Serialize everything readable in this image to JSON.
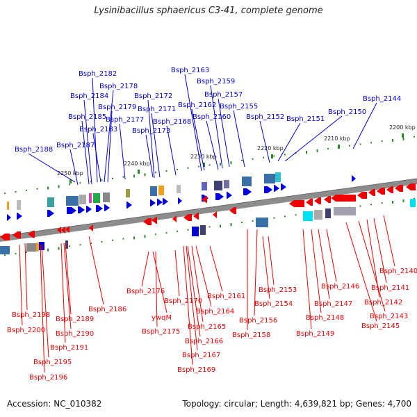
{
  "title": "Lysinibacillus sphaericus C3-41, complete genome",
  "footer": {
    "accession": "Accession: NC_010382",
    "summary": "Topology: circular; Length: 4,639,821 bp; Genes: 4,700"
  },
  "colors": {
    "forward": "#0000dd",
    "reverse": "#ee0000"
  },
  "ticks": [
    "2250 kbp",
    "2240 kbp",
    "2230 kbp",
    "2220 kbp",
    "2210 kbp",
    "2200 kbp"
  ],
  "forward_genes": [
    "Bsph_2182",
    "Bsph_2178",
    "Bsph_2184",
    "Bsph_2179",
    "Bsph_2172",
    "Bsph_2185",
    "Bsph_2177",
    "Bsph_2171",
    "Bsph_2183",
    "Bsph_2173",
    "Bsph_2168",
    "Bsph_2187",
    "Bsph_2188",
    "Bsph_2163",
    "Bsph_2159",
    "Bsph_2157",
    "Bsph_2162",
    "Bsph_2155",
    "Bsph_2160",
    "Bsph_2152",
    "Bsph_2151",
    "Bsph_2150",
    "Bsph_2144"
  ],
  "reverse_genes": [
    "Bsph_2198",
    "Bsph_2200",
    "Bsph_2189",
    "Bsph_2190",
    "Bsph_2191",
    "Bsph_2195",
    "Bsph_2196",
    "Bsph_2186",
    "Bsph_2176",
    "ywqM",
    "Bsph_2175",
    "Bsph_2170",
    "Bsph_2164",
    "Bsph_2165",
    "Bsph_2166",
    "Bsph_2167",
    "Bsph_2169",
    "Bsph_2161",
    "Bsph_2156",
    "Bsph_2158",
    "Bsph_2153",
    "Bsph_2154",
    "Bsph_2146",
    "Bsph_2147",
    "Bsph_2148",
    "Bsph_2149",
    "Bsph_2145",
    "Bsph_2143",
    "Bsph_2142",
    "Bsph_2141",
    "Bsph_2140"
  ]
}
